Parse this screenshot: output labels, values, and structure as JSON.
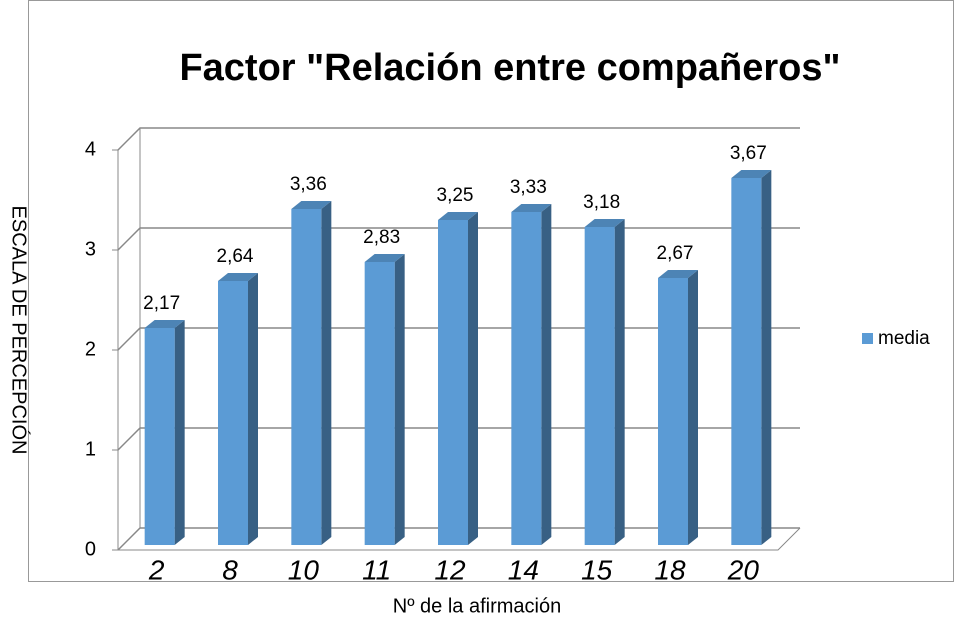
{
  "chart_data": {
    "type": "bar3d",
    "title": "Factor \"Relación entre compañeros\"",
    "x_label": "Nº de la afirmación",
    "y_label": "ESCALA DE PERCEPCIÓN",
    "categories": [
      "2",
      "8",
      "10",
      "11",
      "12",
      "14",
      "15",
      "18",
      "20"
    ],
    "series": [
      {
        "name": "media",
        "color": "#5b9bd5",
        "values": [
          2.17,
          2.64,
          3.36,
          2.83,
          3.25,
          3.33,
          3.18,
          2.67,
          3.67
        ],
        "value_labels": [
          "2,17",
          "2,64",
          "3,36",
          "2,83",
          "3,25",
          "3,33",
          "3,18",
          "2,67",
          "3,67"
        ]
      }
    ],
    "ylim": [
      0,
      4
    ],
    "yticks": [
      0,
      1,
      2,
      3,
      4
    ],
    "grid": true,
    "legend": "right"
  }
}
